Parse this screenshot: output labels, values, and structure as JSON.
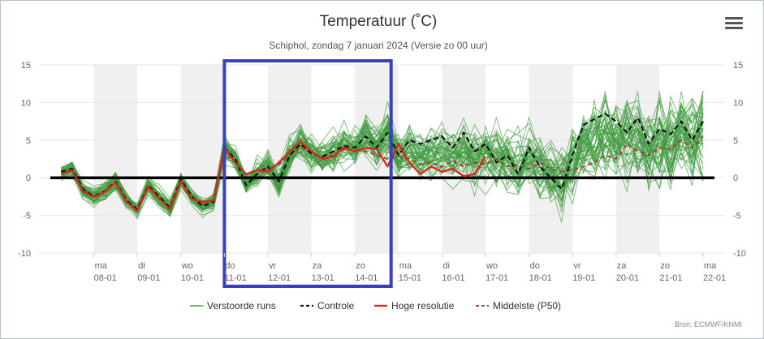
{
  "menu_icon": "hamburger-menu-icon",
  "credits": "Bron: ECMWF/KNMI",
  "chart_data": {
    "type": "line",
    "title": "Temperatuur (˚C)",
    "subtitle": "Schiphol, zondag 7 januari 2024 (Versie zo 00 uur)",
    "x_labels": [
      {
        "day": "ma",
        "date": "08-01"
      },
      {
        "day": "di",
        "date": "09-01"
      },
      {
        "day": "wo",
        "date": "10-01"
      },
      {
        "day": "do",
        "date": "11-01"
      },
      {
        "day": "vr",
        "date": "12-01"
      },
      {
        "day": "za",
        "date": "13-01"
      },
      {
        "day": "zo",
        "date": "14-01"
      },
      {
        "day": "ma",
        "date": "15-01"
      },
      {
        "day": "di",
        "date": "16-01"
      },
      {
        "day": "wo",
        "date": "17-01"
      },
      {
        "day": "do",
        "date": "18-01"
      },
      {
        "day": "vr",
        "date": "19-01"
      },
      {
        "day": "za",
        "date": "20-01"
      },
      {
        "day": "zo",
        "date": "21-01"
      },
      {
        "day": "ma",
        "date": "22-01"
      }
    ],
    "y_ticks": [
      15,
      10,
      5,
      0,
      -5,
      -10
    ],
    "ylim": [
      -10,
      15
    ],
    "x_range_days": [
      7.0,
      22.0
    ],
    "grid": true,
    "shaded_columns": "alternate days",
    "legend_position": "bottom-center",
    "zero_line": true,
    "highlight_box_days": [
      11.0,
      14.83
    ],
    "colors": {
      "ensemble": "#3f9a3f",
      "control": "#111111",
      "high_res": "#d42a1c",
      "median": "#9b4538",
      "highlight": "#3a3fc0",
      "shade": "#f0f0f0"
    },
    "series": [
      {
        "name": "Verstoorde runs",
        "style": "thin green lines",
        "member_count": 50
      },
      {
        "name": "Controle",
        "style": "dashed",
        "x": [
          7.25,
          7.5,
          7.75,
          8.0,
          8.25,
          8.5,
          8.75,
          9.0,
          9.25,
          9.5,
          9.75,
          10.0,
          10.25,
          10.5,
          10.75,
          11.0,
          11.25,
          11.5,
          11.75,
          12.0,
          12.25,
          12.5,
          12.75,
          13.0,
          13.25,
          13.5,
          13.75,
          14.0,
          14.25,
          14.5,
          14.75,
          15.0,
          15.25,
          15.5,
          15.75,
          16.0,
          16.25,
          16.5,
          16.75,
          17.0,
          17.25,
          17.5,
          17.75,
          18.0,
          18.25,
          18.5,
          18.75,
          19.0,
          19.25,
          19.5,
          19.75,
          20.0,
          20.25,
          20.5,
          20.75,
          21.0,
          21.25,
          21.5,
          21.75,
          22.0
        ],
        "y": [
          0.8,
          1.2,
          -1.5,
          -2.5,
          -1.8,
          -0.5,
          -3.0,
          -4.2,
          -1.0,
          -2.5,
          -4.0,
          -0.2,
          -2.5,
          -3.8,
          -3.2,
          4.0,
          2.5,
          -1.0,
          0.5,
          1.5,
          -0.5,
          3.0,
          4.5,
          3.2,
          2.8,
          3.5,
          4.2,
          4.0,
          5.5,
          4.0,
          6.0,
          3.0,
          5.0,
          4.5,
          5.0,
          5.5,
          4.0,
          6.0,
          3.5,
          4.5,
          2.0,
          3.0,
          0.5,
          4.0,
          1.5,
          0.0,
          -1.5,
          3.0,
          7.0,
          7.8,
          8.5,
          7.5,
          6.0,
          8.0,
          4.5,
          6.5,
          5.8,
          7.5,
          5.0,
          7.5
        ]
      },
      {
        "name": "Hoge resolutie",
        "style": "solid",
        "x": [
          7.25,
          7.5,
          7.75,
          8.0,
          8.25,
          8.5,
          8.75,
          9.0,
          9.25,
          9.5,
          9.75,
          10.0,
          10.25,
          10.5,
          10.75,
          11.0,
          11.25,
          11.5,
          11.75,
          12.0,
          12.25,
          12.5,
          12.75,
          13.0,
          13.25,
          13.5,
          13.75,
          14.0,
          14.25,
          14.5,
          14.75,
          15.0,
          15.25,
          15.5,
          15.75,
          16.0,
          16.25,
          16.5,
          16.75,
          17.0
        ],
        "y": [
          0.5,
          1.0,
          -1.8,
          -2.6,
          -1.9,
          -0.6,
          -3.2,
          -4.4,
          -1.2,
          -2.8,
          -4.2,
          -0.5,
          -2.8,
          -3.2,
          -3.0,
          4.0,
          2.0,
          0.5,
          1.0,
          0.8,
          2.0,
          3.5,
          4.8,
          3.5,
          2.5,
          2.8,
          4.0,
          3.5,
          4.0,
          3.8,
          1.5,
          4.5,
          2.0,
          0.5,
          1.5,
          0.8,
          1.2,
          0.2,
          0.5,
          2.8
        ]
      },
      {
        "name": "Middelste (P50)",
        "style": "dashed",
        "x": [
          7.25,
          7.5,
          7.75,
          8.0,
          8.25,
          8.5,
          8.75,
          9.0,
          9.25,
          9.5,
          9.75,
          10.0,
          10.25,
          10.5,
          10.75,
          11.0,
          11.25,
          11.5,
          11.75,
          12.0,
          12.25,
          12.5,
          12.75,
          13.0,
          13.25,
          13.5,
          13.75,
          14.0,
          14.25,
          14.5,
          14.75,
          15.0,
          15.25,
          15.5,
          15.75,
          16.0,
          16.25,
          16.5,
          16.75,
          17.0,
          17.25,
          17.5,
          17.75,
          18.0,
          18.25,
          18.5,
          18.75,
          19.0,
          19.25,
          19.5,
          19.75,
          20.0,
          20.25,
          20.5,
          20.75,
          21.0,
          21.25,
          21.5,
          21.75,
          22.0
        ],
        "y": [
          0.6,
          1.1,
          -1.6,
          -2.5,
          -1.8,
          -0.5,
          -3.1,
          -4.3,
          -1.1,
          -2.6,
          -4.1,
          -0.3,
          -2.6,
          -3.4,
          -3.0,
          3.5,
          2.0,
          0.5,
          1.0,
          1.2,
          1.8,
          3.0,
          4.0,
          3.2,
          2.8,
          3.0,
          3.8,
          3.8,
          3.5,
          3.0,
          2.5,
          2.8,
          2.5,
          1.8,
          2.0,
          1.5,
          2.2,
          1.5,
          2.0,
          1.8,
          2.5,
          1.5,
          1.8,
          1.2,
          2.0,
          1.2,
          0.8,
          1.0,
          1.5,
          2.0,
          3.0,
          2.5,
          4.5,
          3.5,
          3.0,
          4.0,
          3.8,
          5.0,
          4.0,
          5.5
        ]
      }
    ]
  }
}
